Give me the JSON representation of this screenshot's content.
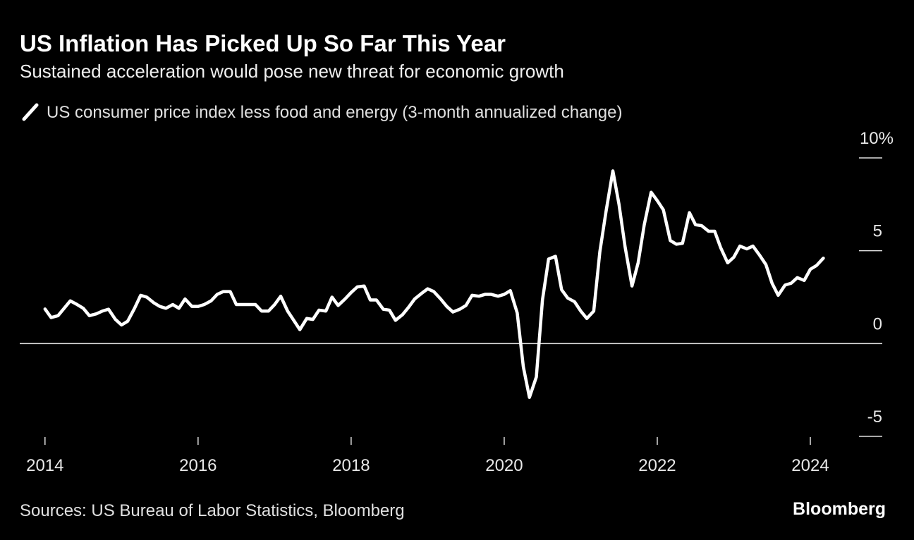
{
  "chart_data": {
    "type": "line",
    "title": "US Inflation Has Picked Up So Far This Year",
    "subtitle": "Sustained acceleration would pose new threat for economic growth",
    "source": "Sources: US Bureau of Labor Statistics, Bloomberg",
    "brand": "Bloomberg",
    "x": [
      2014,
      2014.08,
      2014.17,
      2014.25,
      2014.33,
      2014.42,
      2014.5,
      2014.58,
      2014.67,
      2014.75,
      2014.83,
      2014.92,
      2015,
      2015.08,
      2015.17,
      2015.25,
      2015.33,
      2015.42,
      2015.5,
      2015.58,
      2015.67,
      2015.75,
      2015.83,
      2015.92,
      2016,
      2016.08,
      2016.17,
      2016.25,
      2016.33,
      2016.42,
      2016.5,
      2016.58,
      2016.67,
      2016.75,
      2016.83,
      2016.92,
      2017,
      2017.08,
      2017.17,
      2017.25,
      2017.33,
      2017.42,
      2017.5,
      2017.58,
      2017.67,
      2017.75,
      2017.83,
      2017.92,
      2018,
      2018.08,
      2018.17,
      2018.25,
      2018.33,
      2018.42,
      2018.5,
      2018.58,
      2018.67,
      2018.75,
      2018.83,
      2018.92,
      2019,
      2019.08,
      2019.17,
      2019.25,
      2019.33,
      2019.42,
      2019.5,
      2019.58,
      2019.67,
      2019.75,
      2019.83,
      2019.92,
      2020,
      2020.08,
      2020.17,
      2020.25,
      2020.33,
      2020.42,
      2020.5,
      2020.58,
      2020.67,
      2020.75,
      2020.83,
      2020.92,
      2021,
      2021.08,
      2021.17,
      2021.25,
      2021.33,
      2021.42,
      2021.5,
      2021.58,
      2021.67,
      2021.75,
      2021.83,
      2021.92,
      2022,
      2022.08,
      2022.17,
      2022.25,
      2022.33,
      2022.42,
      2022.5,
      2022.58,
      2022.67,
      2022.75,
      2022.83,
      2022.92,
      2023,
      2023.08,
      2023.17,
      2023.25,
      2023.33,
      2023.42,
      2023.5,
      2023.58,
      2023.67,
      2023.75,
      2023.83,
      2023.92,
      2024,
      2024.08,
      2024.17
    ],
    "series": [
      {
        "name": "US consumer price index less food and energy (3-month annualized change)",
        "color": "#ffffff",
        "values": [
          1.86,
          1.4,
          1.5,
          1.9,
          2.3,
          2.1,
          1.9,
          1.5,
          1.6,
          1.75,
          1.85,
          1.3,
          1.0,
          1.2,
          1.9,
          2.6,
          2.5,
          2.2,
          2.0,
          1.9,
          2.1,
          1.9,
          2.4,
          2.0,
          2.0,
          2.1,
          2.3,
          2.65,
          2.8,
          2.8,
          2.1,
          2.1,
          2.1,
          2.1,
          1.75,
          1.75,
          2.1,
          2.55,
          1.75,
          1.25,
          0.75,
          1.35,
          1.3,
          1.8,
          1.75,
          2.5,
          2.05,
          2.4,
          2.75,
          3.05,
          3.1,
          2.35,
          2.35,
          1.85,
          1.8,
          1.25,
          1.55,
          1.95,
          2.4,
          2.7,
          2.95,
          2.8,
          2.4,
          2.0,
          1.7,
          1.85,
          2.05,
          2.6,
          2.55,
          2.65,
          2.65,
          2.55,
          2.65,
          2.85,
          1.65,
          -1.25,
          -2.9,
          -1.8,
          2.35,
          4.55,
          4.7,
          2.9,
          2.45,
          2.25,
          1.75,
          1.35,
          1.75,
          4.95,
          7.1,
          9.3,
          7.5,
          5.2,
          3.1,
          4.35,
          6.4,
          8.15,
          7.7,
          7.2,
          5.55,
          5.35,
          5.4,
          7.05,
          6.4,
          6.35,
          6.05,
          6.05,
          5.15,
          4.35,
          4.65,
          5.25,
          5.1,
          5.25,
          4.8,
          4.25,
          3.25,
          2.6,
          3.15,
          3.25,
          3.55,
          3.4,
          4.0,
          4.2,
          4.6
        ]
      }
    ],
    "xlim": [
      2013.67,
      2024.94
    ],
    "xticks": [
      2014,
      2016,
      2018,
      2020,
      2022,
      2024
    ],
    "ylim": [
      -5,
      10
    ],
    "yticks": [
      {
        "value": 10,
        "label": "10%"
      },
      5,
      0,
      -5
    ]
  }
}
